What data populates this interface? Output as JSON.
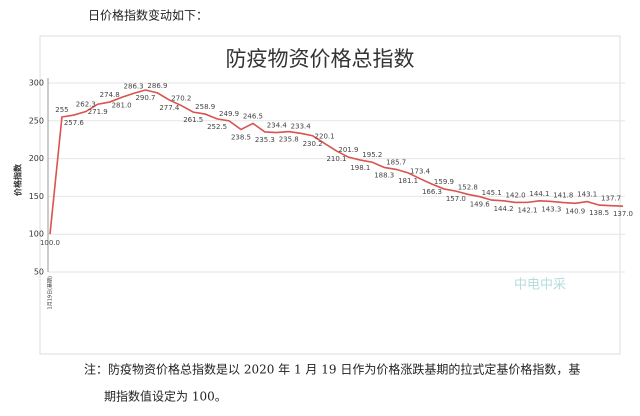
{
  "intro": "日价格指数变动如下：",
  "note": [
    "注：防疫物资价格总指数是以 2020 年 1 月 19 日作为价格涨跌基期的拉式定基价格指数，基",
    "期指数值设定为 100。"
  ],
  "watermark": "中电中采",
  "chart_data": {
    "type": "line",
    "title": "防疫物资价格总指数",
    "y_label": "价格指数",
    "categories": [
      "1月19日(基期)",
      null,
      null,
      null,
      null,
      null,
      null,
      null,
      null,
      null,
      null,
      null,
      null,
      null,
      null,
      null,
      null,
      null,
      null,
      null,
      null,
      null,
      null,
      null,
      null,
      null,
      null,
      null,
      null,
      null,
      null,
      null,
      null,
      null,
      null,
      null,
      null,
      null,
      null,
      null,
      null,
      null,
      null,
      null,
      null,
      null,
      null,
      null,
      null
    ],
    "series": [
      {
        "name": "防疫物资价格总指数",
        "color": "#d9534f",
        "values": [
          100.0,
          255,
          257.6,
          262.3,
          271.9,
          274.8,
          281.0,
          286.3,
          290.7,
          286.9,
          277.4,
          270.2,
          261.5,
          258.9,
          252.5,
          249.9,
          238.5,
          246.5,
          235.3,
          234.4,
          235.8,
          233.4,
          230.2,
          220.1,
          210.1,
          201.9,
          198.1,
          195.2,
          188.3,
          185.7,
          181.1,
          173.4,
          166.3,
          159.9,
          157.0,
          152.8,
          149.6,
          145.1,
          144.2,
          142.0,
          142.1,
          144.1,
          143.3,
          141.8,
          140.9,
          143.1,
          138.5,
          137.7,
          137.0
        ],
        "value_labels": [
          "100.0",
          "255",
          "257.6",
          "262.3",
          "271.9",
          "274.8",
          "281.0",
          "286.3",
          "290.7",
          "286.9",
          "277.4",
          "270.2",
          "261.5",
          "258.9",
          "252.5",
          "249.9",
          "238.5",
          "246.5",
          "235.3",
          "234.4",
          "235.8",
          "233.4",
          "230.2",
          "220.1",
          "210.1",
          "201.9",
          "198.1",
          "195.2",
          "188.3",
          "185.7",
          "181.1",
          "173.4",
          "166.3",
          "159.9",
          "157.0",
          "152.8",
          "149.6",
          "145.1",
          "144.2",
          "142.0",
          "142.1",
          "144.1",
          "143.3",
          "141.8",
          "140.9",
          "143.1",
          "138.5",
          "137.7",
          "137.0"
        ]
      }
    ],
    "ylim": [
      50,
      300
    ],
    "yticks": [
      50,
      100,
      150,
      200,
      250,
      300
    ],
    "grid": true
  }
}
